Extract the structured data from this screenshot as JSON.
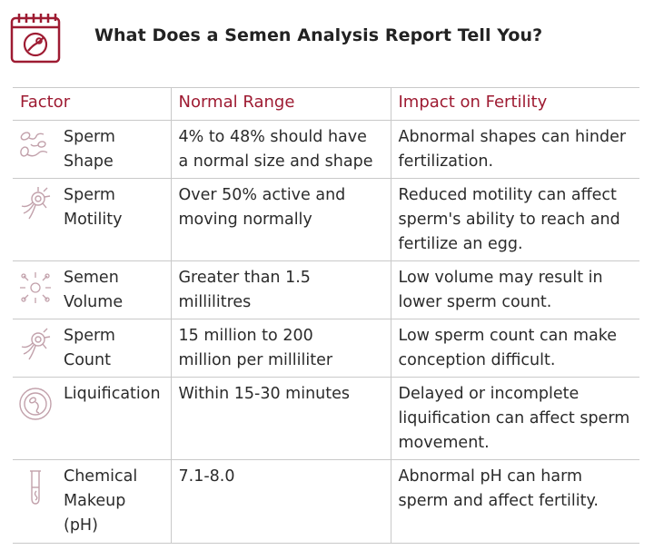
{
  "title": "What Does a Semen Analysis Report Tell You?",
  "header_icon": "calendar-sperm-icon",
  "accent_color": "#9e1b32",
  "columns": [
    "Factor",
    "Normal Range",
    "Impact on Fertility"
  ],
  "rows": [
    {
      "icon": "sperm-shape-icon",
      "factor": "Sperm\nShape",
      "range": "4% to 48% should have\na normal size and shape",
      "impact": "Abnormal shapes can hinder\nfertilization."
    },
    {
      "icon": "sperm-motility-icon",
      "factor": "Sperm\nMotility",
      "range": "Over 50% active and\nmoving normally",
      "impact": "Reduced motility can affect\nsperm's ability to reach and\nfertilize an egg."
    },
    {
      "icon": "semen-volume-icon",
      "factor": "Semen\nVolume",
      "range": "Greater than 1.5\nmillilitres",
      "impact": "Low volume may result in\nlower sperm count."
    },
    {
      "icon": "sperm-count-icon",
      "factor": "Sperm\nCount",
      "range": "15 million to 200\nmillion per milliliter",
      "impact": "Low sperm count can make\nconception difficult."
    },
    {
      "icon": "liquification-icon",
      "factor": "Liquification",
      "range": "Within 15-30 minutes",
      "impact": "Delayed or incomplete\nliquification can affect sperm\nmovement."
    },
    {
      "icon": "test-tube-icon",
      "factor": "Chemical\nMakeup\n(pH)",
      "range": "7.1-8.0",
      "impact": "Abnormal pH can harm\nsperm and affect fertility."
    }
  ]
}
